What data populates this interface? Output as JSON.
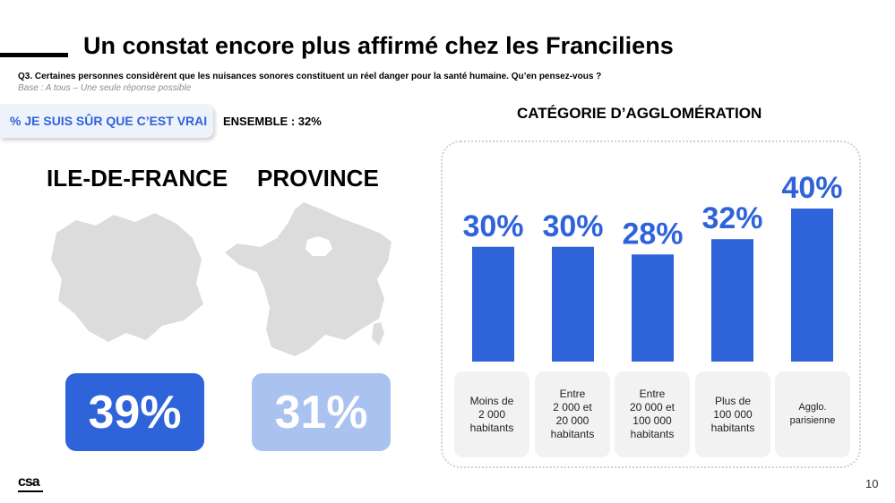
{
  "header": {
    "title": "Un constat encore plus affirmé chez les Franciliens",
    "question": "Q3. Certaines personnes considèrent que les nuisances sonores constituent un réel danger pour la santé humaine. Qu’en pensez-vous ?",
    "base": "Base : A tous – Une seule réponse possible"
  },
  "indicator": {
    "label": "% JE SUIS SÛR QUE C’EST VRAI",
    "ensemble": "ENSEMBLE : 32%"
  },
  "regions": [
    {
      "name": "ILE-DE-FRANCE",
      "value": "39%",
      "color": "#2e63d9",
      "map_icon": "ile-de-france-map-icon"
    },
    {
      "name": "PROVINCE",
      "value": "31%",
      "color": "#a9c2ef",
      "map_icon": "france-map-icon"
    }
  ],
  "chart_data": {
    "type": "bar",
    "title": "CATÉGORIE D’AGGLOMÉRATION",
    "categories": [
      "Moins de\n2 000\nhabitants",
      "Entre\n2 000 et\n20 000\nhabitants",
      "Entre\n20 000 et\n100 000\nhabitants",
      "Plus de\n100 000\nhabitants",
      "Agglo.\nparisienne"
    ],
    "values": [
      30,
      30,
      28,
      32,
      40
    ],
    "value_labels": [
      "30%",
      "30%",
      "28%",
      "32%",
      "40%"
    ],
    "color": "#2e63d9",
    "ylim": [
      0,
      40
    ]
  },
  "footer": {
    "logo": "csa",
    "page": "10"
  }
}
